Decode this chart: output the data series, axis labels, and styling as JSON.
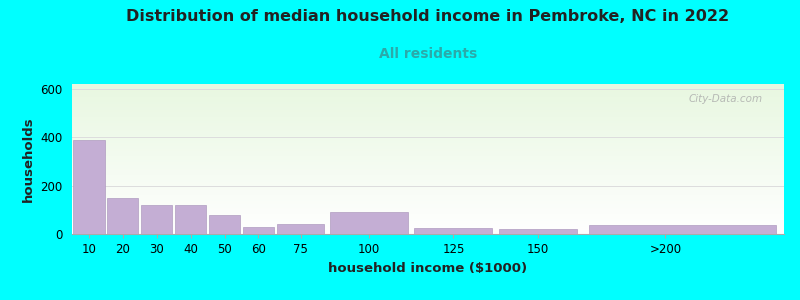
{
  "title": "Distribution of median household income in Pembroke, NC in 2022",
  "subtitle": "All residents",
  "xlabel": "household income ($1000)",
  "ylabel": "households",
  "title_fontsize": 11.5,
  "subtitle_fontsize": 10,
  "label_fontsize": 9.5,
  "tick_fontsize": 8.5,
  "background_color": "#00FFFF",
  "bar_color": "#c4aed4",
  "bar_edge_color": "#b09cc0",
  "subtitle_color": "#2aaaaa",
  "title_color": "#222222",
  "watermark": "City-Data.com",
  "bar_left_edges": [
    0,
    10,
    20,
    30,
    40,
    50,
    60,
    75,
    100,
    125,
    150
  ],
  "bar_widths": [
    10,
    10,
    10,
    10,
    10,
    10,
    15,
    25,
    25,
    25,
    60
  ],
  "bar_xtick_pos": [
    5,
    15,
    25,
    35,
    45,
    55,
    67.5,
    87.5,
    112.5,
    137.5,
    175
  ],
  "xtick_labels": [
    "10",
    "20",
    "30",
    "40",
    "50",
    "60",
    "75",
    "100",
    "125",
    "150",
    ">200"
  ],
  "values": [
    390,
    150,
    118,
    120,
    80,
    30,
    42,
    90,
    25,
    20,
    38
  ],
  "ylim": [
    0,
    620
  ],
  "yticks": [
    0,
    200,
    400,
    600
  ],
  "xlim": [
    0,
    210
  ],
  "grid_color": "#dddddd"
}
